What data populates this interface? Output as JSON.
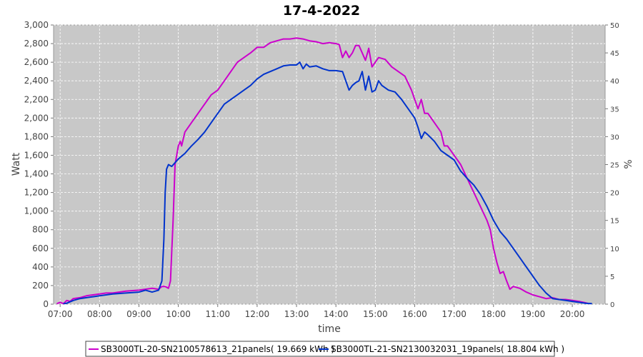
{
  "chart_data": {
    "type": "line",
    "title": "17-4-2022",
    "xlabel": "time",
    "ylabel": "Watt",
    "y2label": "%",
    "ylim": [
      0,
      3000
    ],
    "y2lim": [
      0,
      50
    ],
    "xlim": [
      "06:50",
      "20:50"
    ],
    "grid": true,
    "legend_position": "bottom",
    "x_ticks": [
      "07:00",
      "08:00",
      "09:00",
      "10:00",
      "11:00",
      "12:00",
      "13:00",
      "14:00",
      "15:00",
      "16:00",
      "17:00",
      "18:00",
      "19:00",
      "20:00"
    ],
    "y_ticks": [
      "0",
      "200",
      "400",
      "600",
      "800",
      "1,000",
      "1,200",
      "1,400",
      "1,600",
      "1,800",
      "2,000",
      "2,200",
      "2,400",
      "2,600",
      "2,800",
      "3,000"
    ],
    "y2_ticks": [
      "0",
      "5",
      "10",
      "15",
      "20",
      "25",
      "30",
      "35",
      "40",
      "45",
      "50"
    ],
    "series": [
      {
        "name": "SB3000TL-20-SN2100578613_21panels( 19.669 kWh )",
        "color": "#cc00cc",
        "points": [
          [
            "06:55",
            5
          ],
          [
            "07:00",
            20
          ],
          [
            "07:05",
            5
          ],
          [
            "07:10",
            40
          ],
          [
            "07:15",
            30
          ],
          [
            "07:20",
            60
          ],
          [
            "07:30",
            70
          ],
          [
            "07:40",
            90
          ],
          [
            "07:50",
            100
          ],
          [
            "08:00",
            110
          ],
          [
            "08:10",
            120
          ],
          [
            "08:20",
            120
          ],
          [
            "08:40",
            140
          ],
          [
            "09:00",
            150
          ],
          [
            "09:20",
            170
          ],
          [
            "09:30",
            160
          ],
          [
            "09:35",
            190
          ],
          [
            "09:40",
            190
          ],
          [
            "09:45",
            170
          ],
          [
            "09:48",
            250
          ],
          [
            "09:52",
            900
          ],
          [
            "09:55",
            1500
          ],
          [
            "10:00",
            1700
          ],
          [
            "10:03",
            1750
          ],
          [
            "10:05",
            1700
          ],
          [
            "10:10",
            1850
          ],
          [
            "10:20",
            1950
          ],
          [
            "10:30",
            2050
          ],
          [
            "10:40",
            2150
          ],
          [
            "10:50",
            2250
          ],
          [
            "11:00",
            2300
          ],
          [
            "11:10",
            2400
          ],
          [
            "11:20",
            2500
          ],
          [
            "11:30",
            2600
          ],
          [
            "11:40",
            2650
          ],
          [
            "11:50",
            2700
          ],
          [
            "12:00",
            2760
          ],
          [
            "12:10",
            2760
          ],
          [
            "12:20",
            2810
          ],
          [
            "12:30",
            2830
          ],
          [
            "12:40",
            2850
          ],
          [
            "12:50",
            2850
          ],
          [
            "13:00",
            2860
          ],
          [
            "13:10",
            2850
          ],
          [
            "13:20",
            2830
          ],
          [
            "13:30",
            2820
          ],
          [
            "13:40",
            2800
          ],
          [
            "13:50",
            2810
          ],
          [
            "14:00",
            2800
          ],
          [
            "14:05",
            2790
          ],
          [
            "14:10",
            2650
          ],
          [
            "14:15",
            2720
          ],
          [
            "14:20",
            2650
          ],
          [
            "14:25",
            2700
          ],
          [
            "14:30",
            2780
          ],
          [
            "14:35",
            2780
          ],
          [
            "14:40",
            2700
          ],
          [
            "14:45",
            2620
          ],
          [
            "14:50",
            2750
          ],
          [
            "14:55",
            2550
          ],
          [
            "15:00",
            2600
          ],
          [
            "15:05",
            2650
          ],
          [
            "15:15",
            2630
          ],
          [
            "15:25",
            2550
          ],
          [
            "15:35",
            2500
          ],
          [
            "15:45",
            2450
          ],
          [
            "15:55",
            2300
          ],
          [
            "16:00",
            2200
          ],
          [
            "16:05",
            2100
          ],
          [
            "16:10",
            2200
          ],
          [
            "16:15",
            2050
          ],
          [
            "16:20",
            2050
          ],
          [
            "16:30",
            1950
          ],
          [
            "16:40",
            1850
          ],
          [
            "16:45",
            1700
          ],
          [
            "16:50",
            1700
          ],
          [
            "17:00",
            1600
          ],
          [
            "17:10",
            1500
          ],
          [
            "17:20",
            1350
          ],
          [
            "17:30",
            1200
          ],
          [
            "17:40",
            1050
          ],
          [
            "17:50",
            900
          ],
          [
            "17:55",
            800
          ],
          [
            "18:00",
            600
          ],
          [
            "18:05",
            450
          ],
          [
            "18:10",
            330
          ],
          [
            "18:15",
            350
          ],
          [
            "18:20",
            250
          ],
          [
            "18:25",
            160
          ],
          [
            "18:30",
            190
          ],
          [
            "18:40",
            170
          ],
          [
            "18:50",
            130
          ],
          [
            "19:00",
            100
          ],
          [
            "19:10",
            80
          ],
          [
            "19:20",
            60
          ],
          [
            "19:30",
            70
          ],
          [
            "19:40",
            50
          ],
          [
            "19:50",
            50
          ],
          [
            "20:00",
            40
          ],
          [
            "20:10",
            30
          ],
          [
            "20:20",
            15
          ],
          [
            "20:25",
            5
          ]
        ]
      },
      {
        "name": "SB3000TL-21-SN2130032031_19panels( 18.804 kWh )",
        "color": "#0033cc",
        "points": [
          [
            "07:05",
            5
          ],
          [
            "07:10",
            10
          ],
          [
            "07:20",
            40
          ],
          [
            "07:30",
            60
          ],
          [
            "07:40",
            70
          ],
          [
            "07:50",
            80
          ],
          [
            "08:00",
            90
          ],
          [
            "08:10",
            100
          ],
          [
            "08:20",
            110
          ],
          [
            "08:40",
            120
          ],
          [
            "09:00",
            130
          ],
          [
            "09:10",
            150
          ],
          [
            "09:20",
            130
          ],
          [
            "09:30",
            150
          ],
          [
            "09:35",
            250
          ],
          [
            "09:38",
            700
          ],
          [
            "09:40",
            1200
          ],
          [
            "09:42",
            1450
          ],
          [
            "09:45",
            1500
          ],
          [
            "09:50",
            1480
          ],
          [
            "10:00",
            1560
          ],
          [
            "10:10",
            1620
          ],
          [
            "10:20",
            1700
          ],
          [
            "10:30",
            1770
          ],
          [
            "10:40",
            1850
          ],
          [
            "10:50",
            1950
          ],
          [
            "11:00",
            2050
          ],
          [
            "11:10",
            2150
          ],
          [
            "11:20",
            2200
          ],
          [
            "11:30",
            2250
          ],
          [
            "11:40",
            2300
          ],
          [
            "11:50",
            2350
          ],
          [
            "12:00",
            2420
          ],
          [
            "12:10",
            2470
          ],
          [
            "12:20",
            2500
          ],
          [
            "12:30",
            2530
          ],
          [
            "12:40",
            2560
          ],
          [
            "12:50",
            2570
          ],
          [
            "13:00",
            2570
          ],
          [
            "13:05",
            2600
          ],
          [
            "13:10",
            2530
          ],
          [
            "13:15",
            2580
          ],
          [
            "13:20",
            2550
          ],
          [
            "13:30",
            2560
          ],
          [
            "13:40",
            2530
          ],
          [
            "13:50",
            2510
          ],
          [
            "14:00",
            2510
          ],
          [
            "14:10",
            2500
          ],
          [
            "14:15",
            2400
          ],
          [
            "14:20",
            2300
          ],
          [
            "14:25",
            2350
          ],
          [
            "14:30",
            2380
          ],
          [
            "14:35",
            2400
          ],
          [
            "14:40",
            2500
          ],
          [
            "14:45",
            2300
          ],
          [
            "14:50",
            2450
          ],
          [
            "14:55",
            2280
          ],
          [
            "15:00",
            2300
          ],
          [
            "15:05",
            2400
          ],
          [
            "15:10",
            2350
          ],
          [
            "15:20",
            2300
          ],
          [
            "15:30",
            2280
          ],
          [
            "15:40",
            2200
          ],
          [
            "15:50",
            2100
          ],
          [
            "16:00",
            2000
          ],
          [
            "16:05",
            1900
          ],
          [
            "16:10",
            1780
          ],
          [
            "16:15",
            1850
          ],
          [
            "16:20",
            1820
          ],
          [
            "16:30",
            1750
          ],
          [
            "16:40",
            1650
          ],
          [
            "16:50",
            1600
          ],
          [
            "17:00",
            1550
          ],
          [
            "17:10",
            1430
          ],
          [
            "17:20",
            1350
          ],
          [
            "17:30",
            1280
          ],
          [
            "17:40",
            1180
          ],
          [
            "17:50",
            1050
          ],
          [
            "18:00",
            900
          ],
          [
            "18:10",
            780
          ],
          [
            "18:20",
            700
          ],
          [
            "18:30",
            600
          ],
          [
            "18:40",
            500
          ],
          [
            "18:50",
            400
          ],
          [
            "19:00",
            300
          ],
          [
            "19:10",
            200
          ],
          [
            "19:20",
            120
          ],
          [
            "19:30",
            60
          ],
          [
            "19:40",
            50
          ],
          [
            "19:50",
            40
          ],
          [
            "20:00",
            30
          ],
          [
            "20:10",
            20
          ],
          [
            "20:20",
            10
          ],
          [
            "20:30",
            5
          ]
        ]
      }
    ]
  }
}
